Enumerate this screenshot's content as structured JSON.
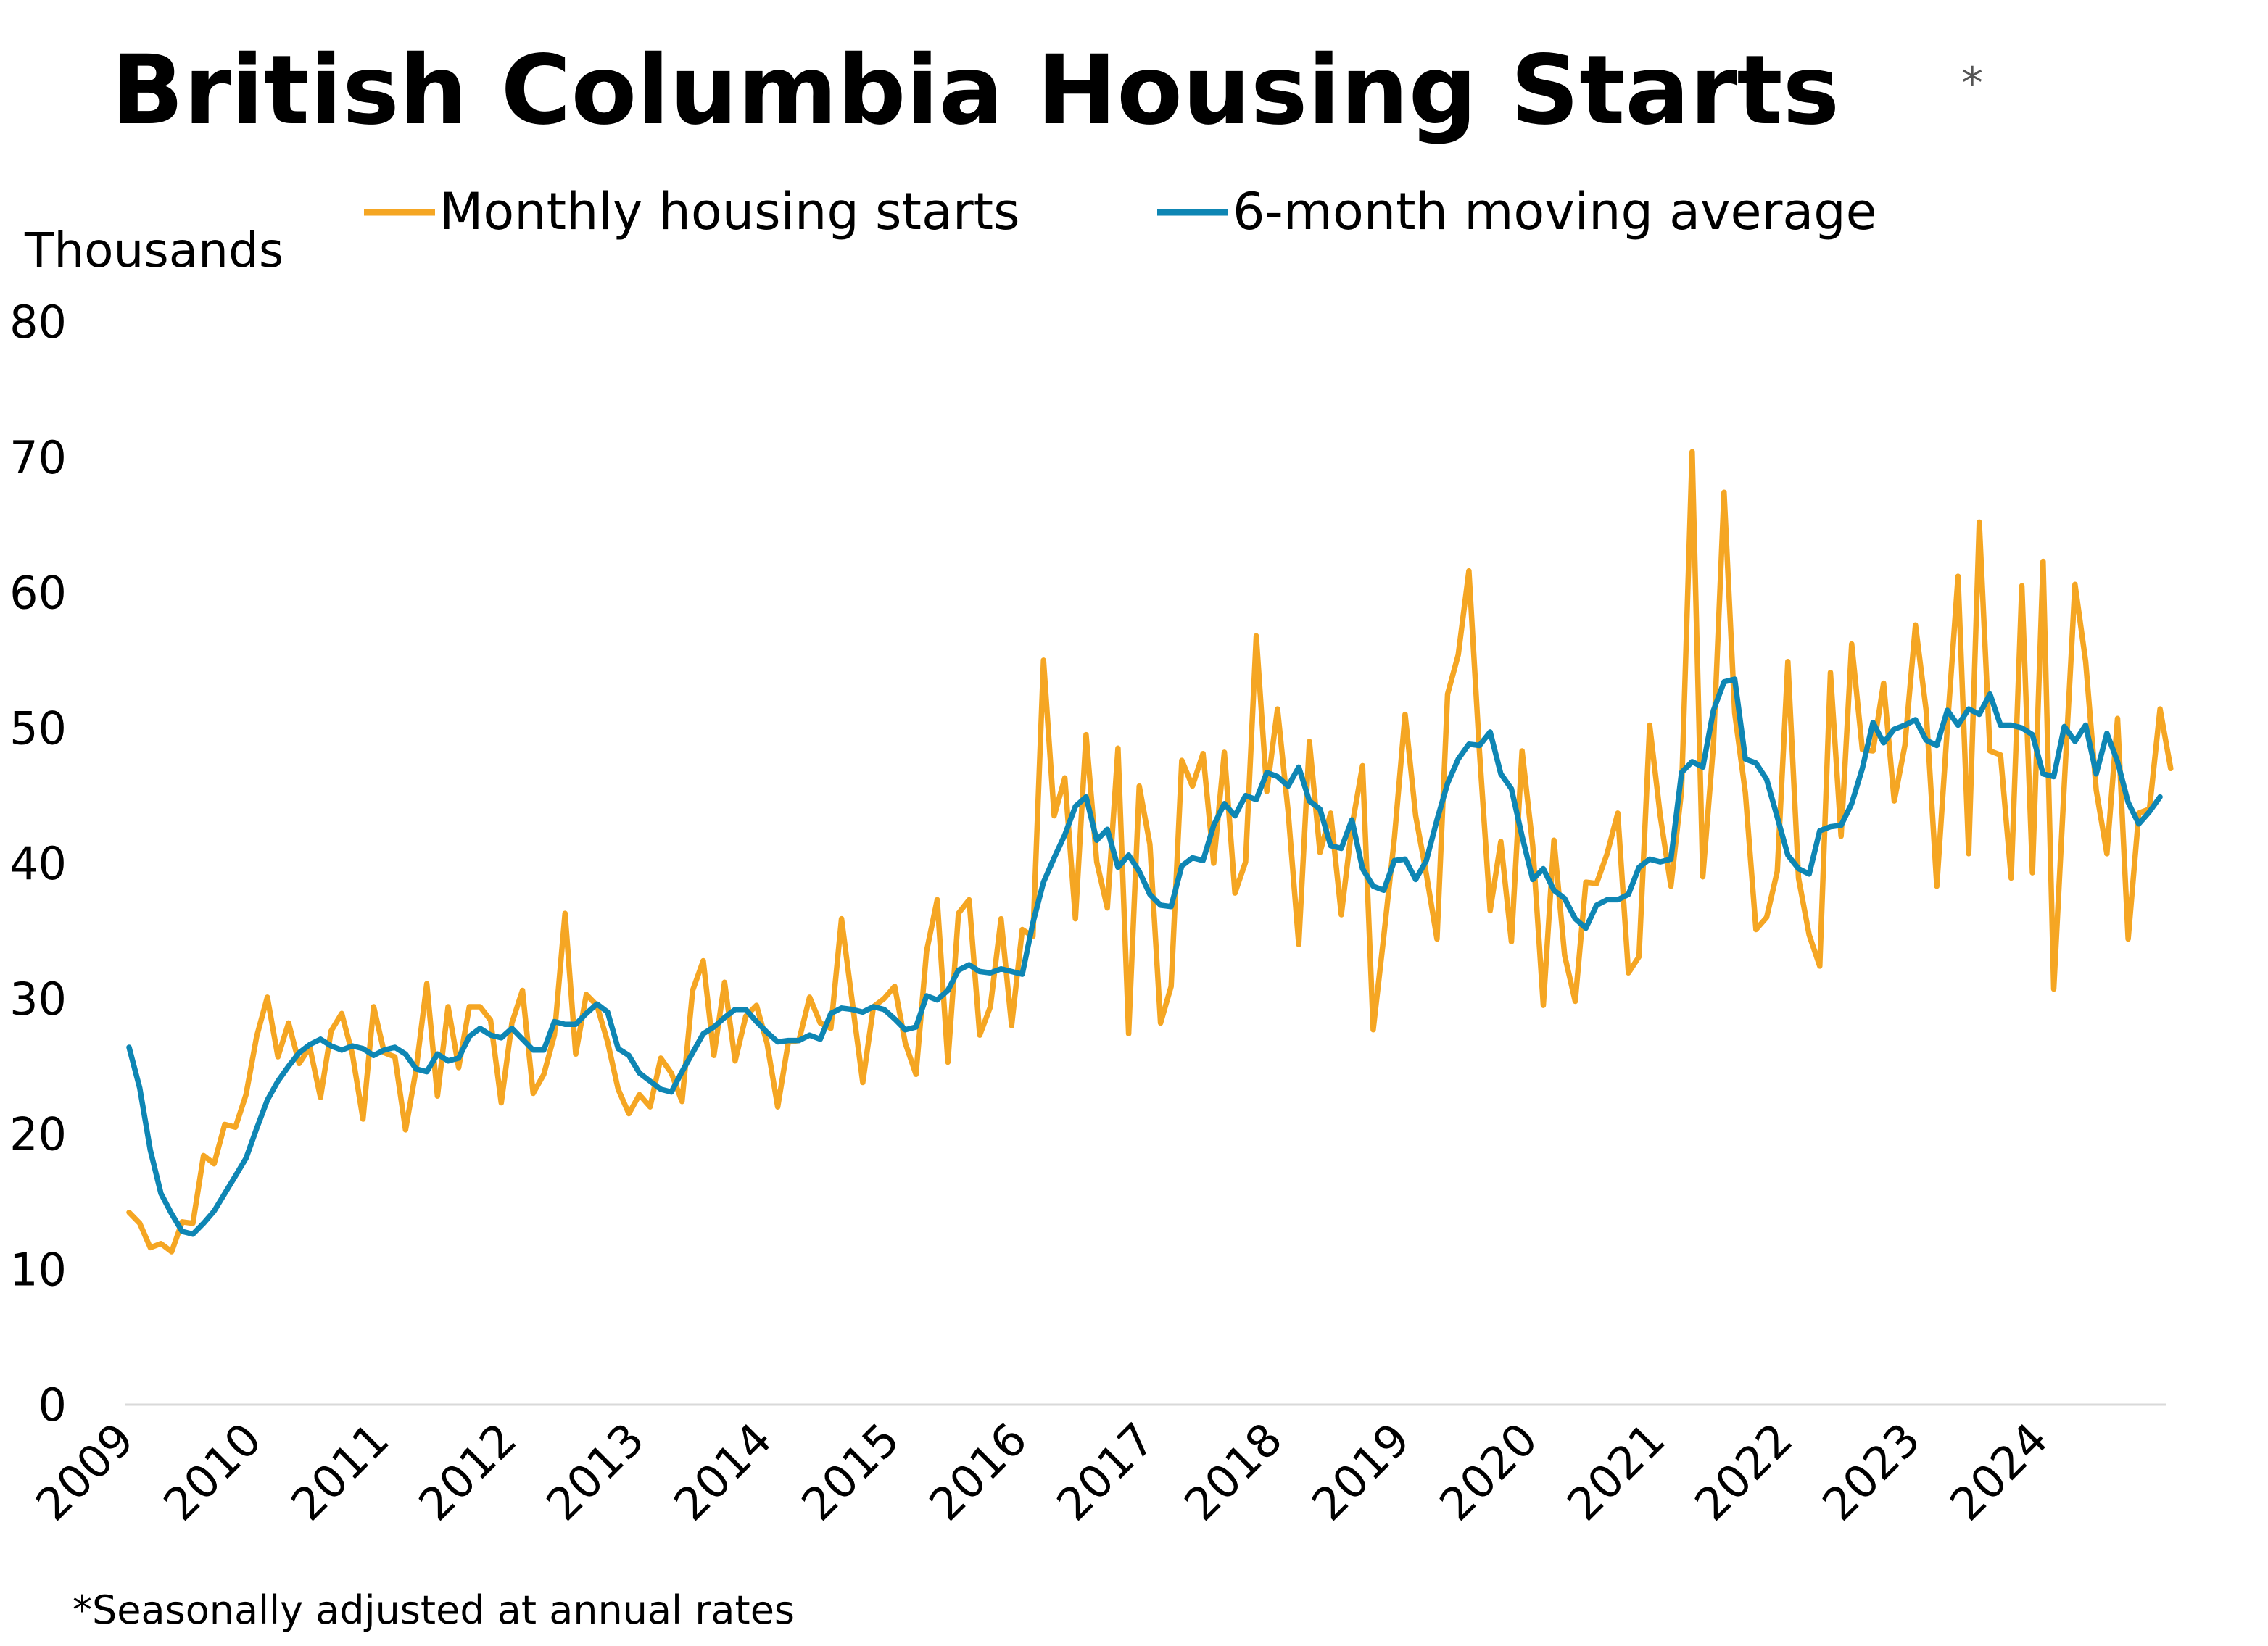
{
  "chart_data": {
    "type": "line",
    "title": "British Columbia Housing Starts",
    "title_marker": "*",
    "unit_label": "Thousands",
    "footnote": "*Seasonally adjusted at annual rates",
    "ylim": [
      0,
      80
    ],
    "yticks": [
      "0",
      "10",
      "20",
      "30",
      "40",
      "50",
      "60",
      "70",
      "80"
    ],
    "xlim": [
      2009,
      2024.95
    ],
    "xticks": [
      "2009",
      "2010",
      "2011",
      "2012",
      "2013",
      "2014",
      "2015",
      "2016",
      "2017",
      "2018",
      "2019",
      "2020",
      "2021",
      "2022",
      "2023",
      "2024"
    ],
    "x_start": 2009,
    "x_step_months": 1,
    "legend_position": "top",
    "grid": false,
    "series": [
      {
        "name": "Monthly housing starts",
        "color": "#F5A623",
        "values": [
          14.2,
          13.4,
          11.6,
          11.9,
          11.3,
          13.5,
          13.4,
          18.4,
          17.8,
          20.7,
          20.5,
          22.9,
          27.2,
          30.1,
          25.7,
          28.2,
          25.2,
          26.4,
          22.7,
          27.6,
          28.9,
          25.9,
          21.1,
          29.4,
          26.0,
          25.7,
          20.3,
          24.8,
          31.1,
          22.8,
          29.4,
          24.9,
          29.4,
          29.4,
          28.4,
          22.3,
          28.2,
          30.6,
          23.0,
          24.4,
          27.3,
          36.3,
          25.9,
          30.3,
          29.5,
          26.8,
          23.3,
          21.5,
          22.9,
          22.0,
          25.6,
          24.5,
          22.4,
          30.6,
          32.8,
          25.8,
          31.2,
          25.4,
          28.7,
          29.5,
          26.7,
          22.0,
          26.8,
          26.9,
          30.1,
          28.2,
          27.8,
          35.9,
          29.8,
          23.8,
          29.4,
          30.0,
          30.9,
          26.7,
          24.4,
          33.5,
          37.3,
          25.3,
          36.3,
          37.3,
          27.3,
          29.4,
          35.9,
          28.0,
          35.1,
          34.6,
          55.0,
          43.5,
          46.3,
          35.9,
          49.5,
          40.1,
          36.7,
          48.5,
          27.4,
          45.7,
          41.4,
          28.2,
          30.9,
          47.6,
          45.7,
          48.1,
          40.0,
          48.2,
          37.8,
          40.1,
          56.8,
          45.3,
          51.4,
          43.8,
          34.0,
          49.0,
          40.8,
          43.7,
          36.2,
          42.7,
          47.2,
          27.7,
          34.6,
          41.9,
          51.0,
          43.5,
          39.2,
          34.4,
          52.5,
          55.4,
          61.6,
          48.2,
          36.5,
          41.6,
          34.2,
          48.3,
          41.3,
          29.5,
          41.7,
          33.2,
          29.8,
          38.6,
          38.5,
          40.7,
          43.7,
          31.9,
          33.1,
          50.2,
          43.5,
          38.3,
          45.4,
          70.4,
          39.0,
          48.8,
          67.4,
          51.1,
          45.2,
          35.1,
          36.0,
          39.4,
          54.9,
          38.9,
          34.7,
          32.4,
          54.1,
          42.0,
          56.2,
          48.4,
          48.3,
          53.3,
          44.6,
          48.7,
          57.6,
          51.3,
          38.3,
          50.1,
          61.2,
          40.7,
          65.2,
          48.3,
          48.0,
          38.9,
          60.5,
          39.3,
          62.3,
          30.7,
          45.9,
          60.6,
          54.9,
          45.4,
          40.7,
          50.7,
          34.4,
          43.7,
          44.0,
          51.4,
          47.0
        ]
      },
      {
        "name": "6-month moving average",
        "color": "#0E86B4",
        "values": [
          26.4,
          23.4,
          18.8,
          15.6,
          14.1,
          12.8,
          12.6,
          13.4,
          14.3,
          15.6,
          16.9,
          18.2,
          20.4,
          22.5,
          23.9,
          25.0,
          26.0,
          26.6,
          27.0,
          26.5,
          26.2,
          26.5,
          26.3,
          25.8,
          26.2,
          26.4,
          25.9,
          24.8,
          24.6,
          25.9,
          25.4,
          25.6,
          27.2,
          27.8,
          27.3,
          27.1,
          27.8,
          27.0,
          26.2,
          26.2,
          28.3,
          28.1,
          28.1,
          28.9,
          29.6,
          29.0,
          26.3,
          25.8,
          24.5,
          23.9,
          23.3,
          23.1,
          24.6,
          26.0,
          27.4,
          27.9,
          28.6,
          29.2,
          29.2,
          28.3,
          27.5,
          26.8,
          26.9,
          26.9,
          27.3,
          27.0,
          28.9,
          29.3,
          29.2,
          29.0,
          29.4,
          29.2,
          28.5,
          27.7,
          27.9,
          30.2,
          29.9,
          30.6,
          32.1,
          32.5,
          32.0,
          31.9,
          32.2,
          32.0,
          31.8,
          35.6,
          38.6,
          40.4,
          42.1,
          44.2,
          44.9,
          41.7,
          42.5,
          39.7,
          40.6,
          39.4,
          37.7,
          36.9,
          36.8,
          39.8,
          40.4,
          40.2,
          42.8,
          44.4,
          43.5,
          45.0,
          44.7,
          46.7,
          46.4,
          45.7,
          47.1,
          44.6,
          44.0,
          41.3,
          41.1,
          43.2,
          39.6,
          38.3,
          38.0,
          40.2,
          40.3,
          38.8,
          40.2,
          43.2,
          45.9,
          47.7,
          48.8,
          48.7,
          49.7,
          46.6,
          45.5,
          42.0,
          38.8,
          39.6,
          38.0,
          37.4,
          35.9,
          35.2,
          36.9,
          37.3,
          37.3,
          37.7,
          39.7,
          40.3,
          40.1,
          40.3,
          46.7,
          47.5,
          47.1,
          51.3,
          53.4,
          53.6,
          47.7,
          47.4,
          46.2,
          43.4,
          40.6,
          39.6,
          39.2,
          42.4,
          42.7,
          42.8,
          44.4,
          47.0,
          50.4,
          48.9,
          49.9,
          50.2,
          50.6,
          49.1,
          48.7,
          51.3,
          50.2,
          51.4,
          51.0,
          52.5,
          50.2,
          50.2,
          50.0,
          49.5,
          46.6,
          46.4,
          50.1,
          49.0,
          50.2,
          46.6,
          49.6,
          47.5,
          44.5,
          42.9,
          43.8,
          44.9
        ]
      }
    ]
  }
}
